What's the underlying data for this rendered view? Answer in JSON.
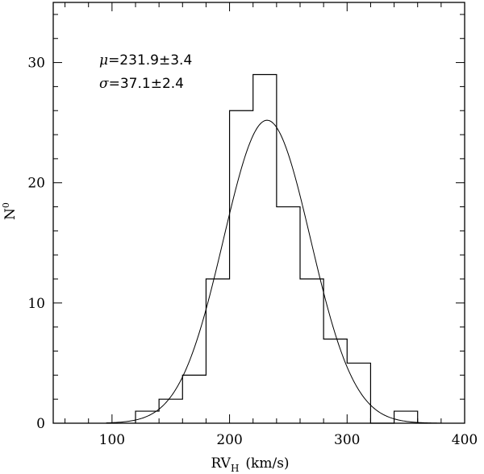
{
  "chart_data": {
    "type": "bar",
    "histogram": true,
    "xlabel_main": "RV",
    "xlabel_sub": "H",
    "xlabel_units": "(km/s)",
    "ylabel_main": "N",
    "ylabel_sup": "0",
    "xlim": [
      50,
      400
    ],
    "ylim": [
      0,
      35
    ],
    "x_ticks": [
      100,
      200,
      300,
      400
    ],
    "y_ticks": [
      0,
      10,
      20,
      30
    ],
    "x_minor_step": 20,
    "y_minor_step": 2,
    "bin_edges": [
      120,
      140,
      160,
      180,
      200,
      220,
      240,
      260,
      280,
      300,
      320,
      340,
      360
    ],
    "counts": [
      1,
      2,
      4,
      12,
      26,
      29,
      18,
      12,
      7,
      5,
      0,
      1
    ],
    "fit": {
      "type": "gaussian",
      "mu": 231.9,
      "sigma": 37.1,
      "peak": 25.2
    },
    "annotations": [
      {
        "symbol": "μ",
        "text": "=231.9±3.4"
      },
      {
        "symbol": "σ",
        "text": "=37.1±2.4"
      }
    ],
    "grid": false
  }
}
